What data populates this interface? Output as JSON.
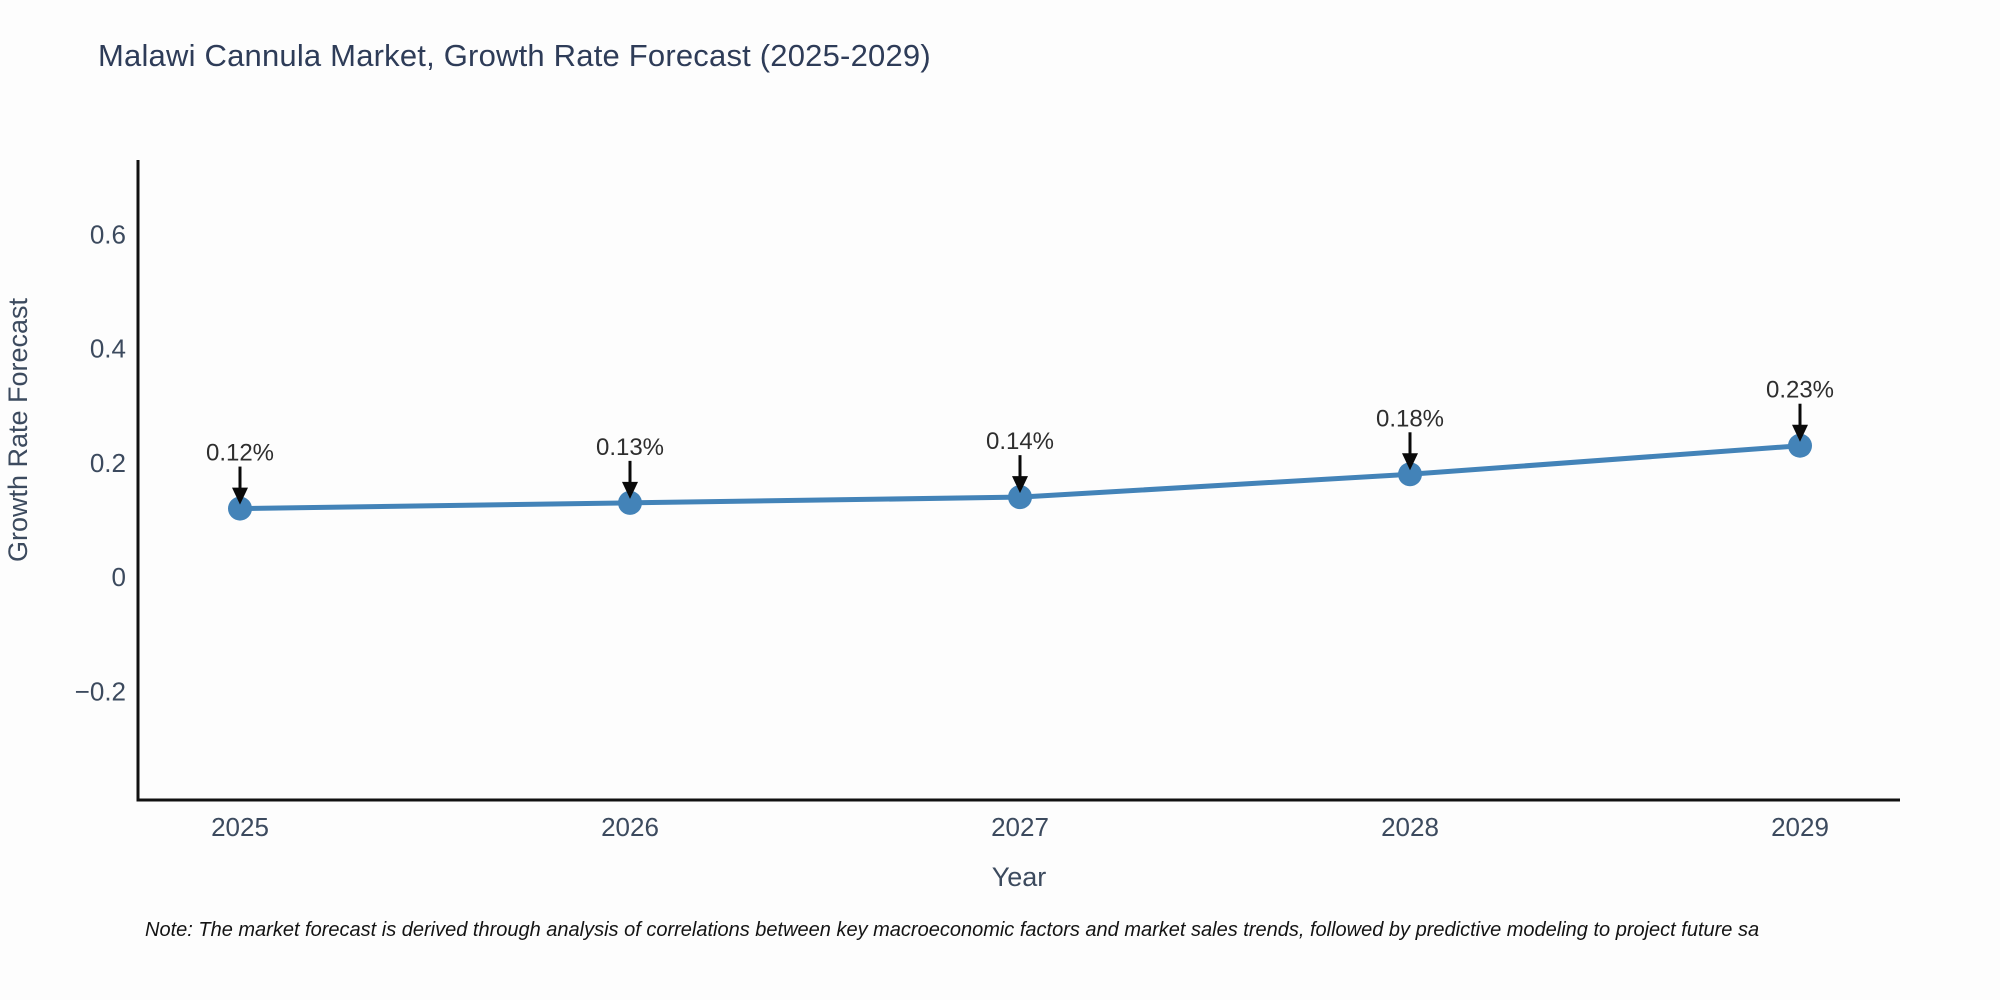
{
  "title": "Malawi Cannula Market, Growth Rate Forecast (2025-2029)",
  "note": "Note: The market forecast is derived through analysis of correlations between key macroeconomic factors and market sales trends, followed by predictive modeling to project future sa",
  "chart_data": {
    "type": "line",
    "title": "Malawi Cannula Market, Growth Rate Forecast (2025-2029)",
    "xlabel": "Year",
    "ylabel": "Growth Rate Forecast",
    "categories": [
      "2025",
      "2026",
      "2027",
      "2028",
      "2029"
    ],
    "values": [
      0.12,
      0.13,
      0.14,
      0.18,
      0.23
    ],
    "annotations": [
      "0.12%",
      "0.13%",
      "0.14%",
      "0.18%",
      "0.23%"
    ],
    "yticks": [
      -0.2,
      0,
      0.2,
      0.4,
      0.6
    ],
    "ylim": [
      -0.39,
      0.73
    ],
    "grid": false,
    "legend": false,
    "colors": {
      "line": "#4383b8",
      "marker": "#4383b8",
      "arrow": "#0a0a0a",
      "axis": "#111111",
      "tick_text": "#3c4a5e",
      "axis_label_text": "#3c4a5e",
      "annotation_text": "#2e2e2e"
    }
  }
}
